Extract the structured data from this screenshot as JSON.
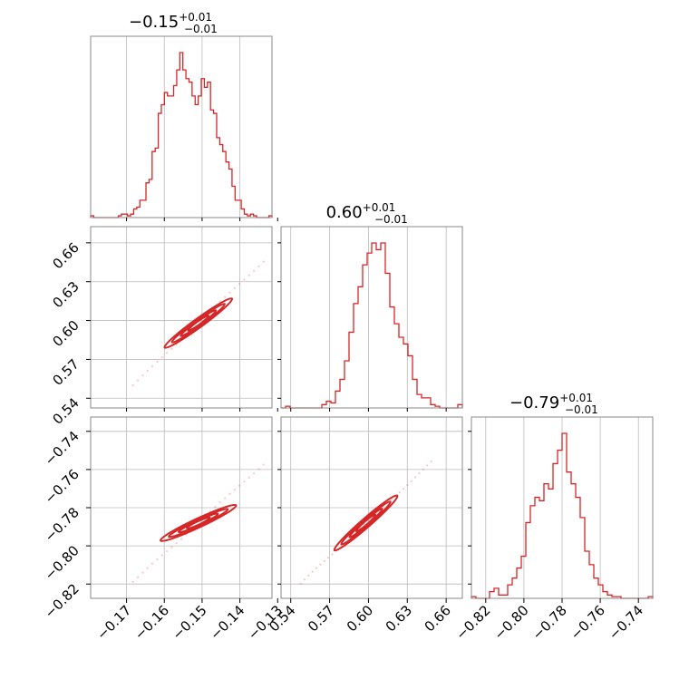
{
  "chart_data": {
    "type": "corner",
    "color": "#d62728",
    "parameters": [
      {
        "title": {
          "value": "−0.15",
          "plus": "+0.01",
          "minus": "−0.01"
        }
      },
      {
        "title": {
          "value": "0.60",
          "plus": "+0.01",
          "minus": "−0.01"
        }
      },
      {
        "title": {
          "value": "−0.79",
          "plus": "+0.01",
          "minus": "−0.01"
        }
      }
    ],
    "axes": [
      {
        "range": [
          -0.1795,
          -0.1315
        ],
        "ticks": [
          -0.17,
          -0.16,
          -0.15,
          -0.14,
          -0.13
        ],
        "tick_labels": [
          "−0.17",
          "−0.16",
          "−0.15",
          "−0.14",
          "−0.13"
        ]
      },
      {
        "range": [
          0.5325,
          0.6725
        ],
        "ticks": [
          0.54,
          0.57,
          0.6,
          0.63,
          0.66
        ],
        "tick_labels": [
          "0.54",
          "0.57",
          "0.60",
          "0.63",
          "0.66"
        ]
      },
      {
        "range": [
          -0.8275,
          -0.7325
        ],
        "ticks": [
          -0.82,
          -0.8,
          -0.78,
          -0.76,
          -0.74
        ],
        "tick_labels": [
          "−0.82",
          "−0.80",
          "−0.78",
          "−0.76",
          "−0.74"
        ]
      }
    ],
    "histograms": [
      [
        1,
        0,
        0,
        0,
        0,
        0,
        0,
        0,
        0,
        1,
        2,
        2,
        1,
        2,
        5,
        6,
        10,
        10,
        20,
        22,
        38,
        40,
        60,
        65,
        72,
        70,
        70,
        76,
        85,
        95,
        85,
        80,
        78,
        70,
        65,
        70,
        80,
        75,
        78,
        62,
        60,
        46,
        42,
        38,
        32,
        28,
        18,
        10,
        10,
        5,
        2,
        1,
        2,
        1,
        0,
        0,
        0,
        0,
        1
      ],
      [
        0,
        1,
        0,
        0,
        0,
        0,
        0,
        0,
        0,
        2,
        4,
        3,
        10,
        17,
        28,
        45,
        62,
        72,
        85,
        92,
        98,
        94,
        98,
        80,
        60,
        50,
        42,
        38,
        31,
        17,
        8,
        6,
        6,
        2,
        1,
        0,
        0,
        0,
        0,
        2
      ],
      [
        1,
        0,
        0,
        0,
        4,
        6,
        2,
        2,
        8,
        12,
        18,
        25,
        45,
        55,
        60,
        58,
        68,
        65,
        80,
        88,
        98,
        75,
        68,
        60,
        48,
        28,
        20,
        12,
        8,
        4,
        2,
        1,
        1,
        0,
        0,
        0,
        0,
        0,
        0,
        1
      ]
    ],
    "grid": true
  }
}
